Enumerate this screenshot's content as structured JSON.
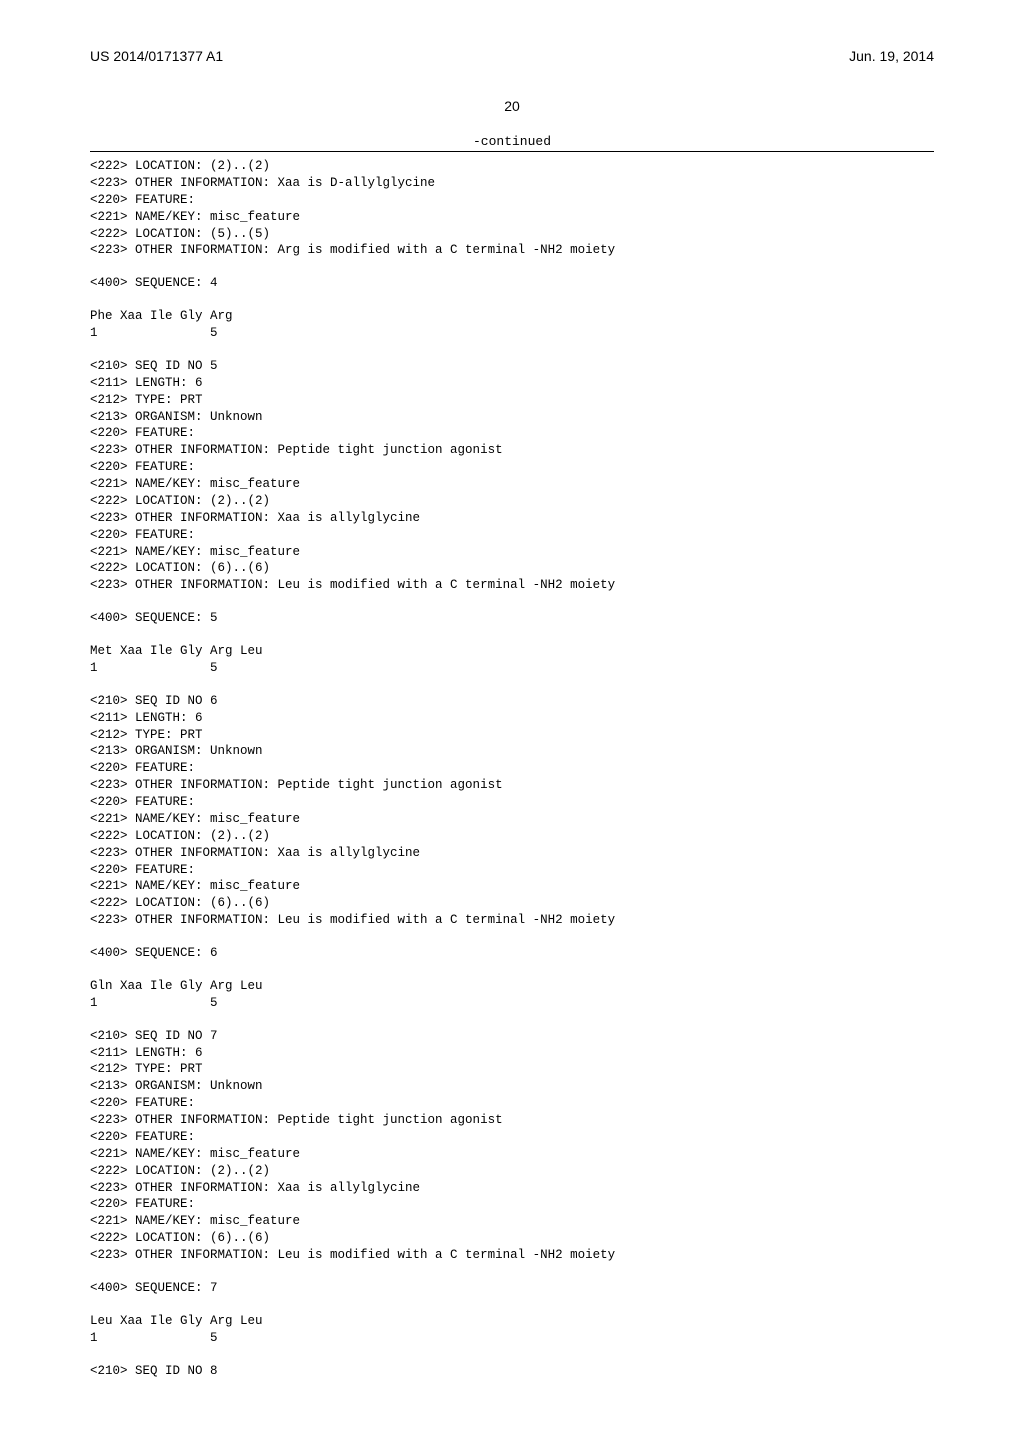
{
  "header": {
    "left": "US 2014/0171377 A1",
    "right": "Jun. 19, 2014"
  },
  "pageNumber": "20",
  "continuedLabel": "-continued",
  "colors": {
    "background": "#ffffff",
    "text": "#000000",
    "rule": "#000000"
  },
  "typography": {
    "bodyFont": "Arial",
    "monoFont": "Courier New",
    "headerSize": 14,
    "monoSize": 12.5
  },
  "blocks": [
    {
      "lines": [
        "<222> LOCATION: (2)..(2)",
        "<223> OTHER INFORMATION: Xaa is D-allylglycine",
        "<220> FEATURE:",
        "<221> NAME/KEY: misc_feature",
        "<222> LOCATION: (5)..(5)",
        "<223> OTHER INFORMATION: Arg is modified with a C terminal -NH2 moiety"
      ]
    },
    {
      "lines": [
        "<400> SEQUENCE: 4"
      ]
    },
    {
      "lines": [
        "Phe Xaa Ile Gly Arg",
        "1               5"
      ]
    },
    {
      "lines": [
        "<210> SEQ ID NO 5",
        "<211> LENGTH: 6",
        "<212> TYPE: PRT",
        "<213> ORGANISM: Unknown",
        "<220> FEATURE:",
        "<223> OTHER INFORMATION: Peptide tight junction agonist",
        "<220> FEATURE:",
        "<221> NAME/KEY: misc_feature",
        "<222> LOCATION: (2)..(2)",
        "<223> OTHER INFORMATION: Xaa is allylglycine",
        "<220> FEATURE:",
        "<221> NAME/KEY: misc_feature",
        "<222> LOCATION: (6)..(6)",
        "<223> OTHER INFORMATION: Leu is modified with a C terminal -NH2 moiety"
      ]
    },
    {
      "lines": [
        "<400> SEQUENCE: 5"
      ]
    },
    {
      "lines": [
        "Met Xaa Ile Gly Arg Leu",
        "1               5"
      ]
    },
    {
      "lines": [
        "<210> SEQ ID NO 6",
        "<211> LENGTH: 6",
        "<212> TYPE: PRT",
        "<213> ORGANISM: Unknown",
        "<220> FEATURE:",
        "<223> OTHER INFORMATION: Peptide tight junction agonist",
        "<220> FEATURE:",
        "<221> NAME/KEY: misc_feature",
        "<222> LOCATION: (2)..(2)",
        "<223> OTHER INFORMATION: Xaa is allylglycine",
        "<220> FEATURE:",
        "<221> NAME/KEY: misc_feature",
        "<222> LOCATION: (6)..(6)",
        "<223> OTHER INFORMATION: Leu is modified with a C terminal -NH2 moiety"
      ]
    },
    {
      "lines": [
        "<400> SEQUENCE: 6"
      ]
    },
    {
      "lines": [
        "Gln Xaa Ile Gly Arg Leu",
        "1               5"
      ]
    },
    {
      "lines": [
        "<210> SEQ ID NO 7",
        "<211> LENGTH: 6",
        "<212> TYPE: PRT",
        "<213> ORGANISM: Unknown",
        "<220> FEATURE:",
        "<223> OTHER INFORMATION: Peptide tight junction agonist",
        "<220> FEATURE:",
        "<221> NAME/KEY: misc_feature",
        "<222> LOCATION: (2)..(2)",
        "<223> OTHER INFORMATION: Xaa is allylglycine",
        "<220> FEATURE:",
        "<221> NAME/KEY: misc_feature",
        "<222> LOCATION: (6)..(6)",
        "<223> OTHER INFORMATION: Leu is modified with a C terminal -NH2 moiety"
      ]
    },
    {
      "lines": [
        "<400> SEQUENCE: 7"
      ]
    },
    {
      "lines": [
        "Leu Xaa Ile Gly Arg Leu",
        "1               5"
      ]
    },
    {
      "lines": [
        "<210> SEQ ID NO 8"
      ]
    }
  ]
}
